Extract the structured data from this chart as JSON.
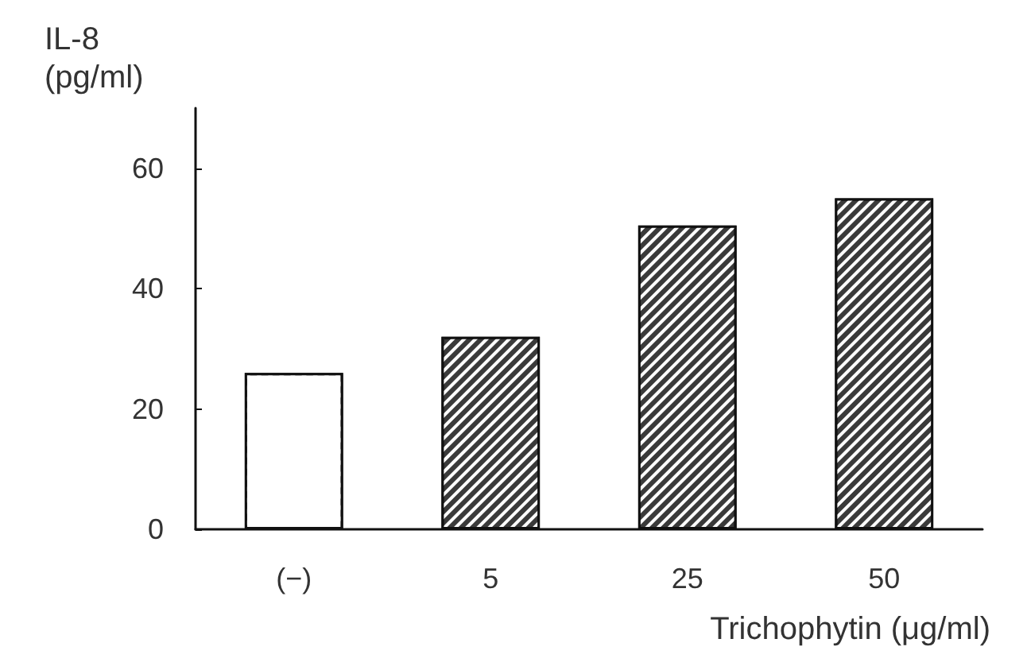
{
  "chart_data": {
    "type": "bar",
    "ylabel": "IL-8\n(pg/ml)",
    "xlabel": "Trichophytin (μg/ml)",
    "categories": [
      "(−)",
      "5",
      "25",
      "50"
    ],
    "values": [
      26,
      32,
      50.5,
      55
    ],
    "colors": [
      "#ffffff",
      "#3a3a3a",
      "#3a3a3a",
      "#3a3a3a"
    ],
    "ylim": [
      0,
      70
    ],
    "yticks": [
      0,
      20,
      40,
      60
    ],
    "grid": false
  }
}
